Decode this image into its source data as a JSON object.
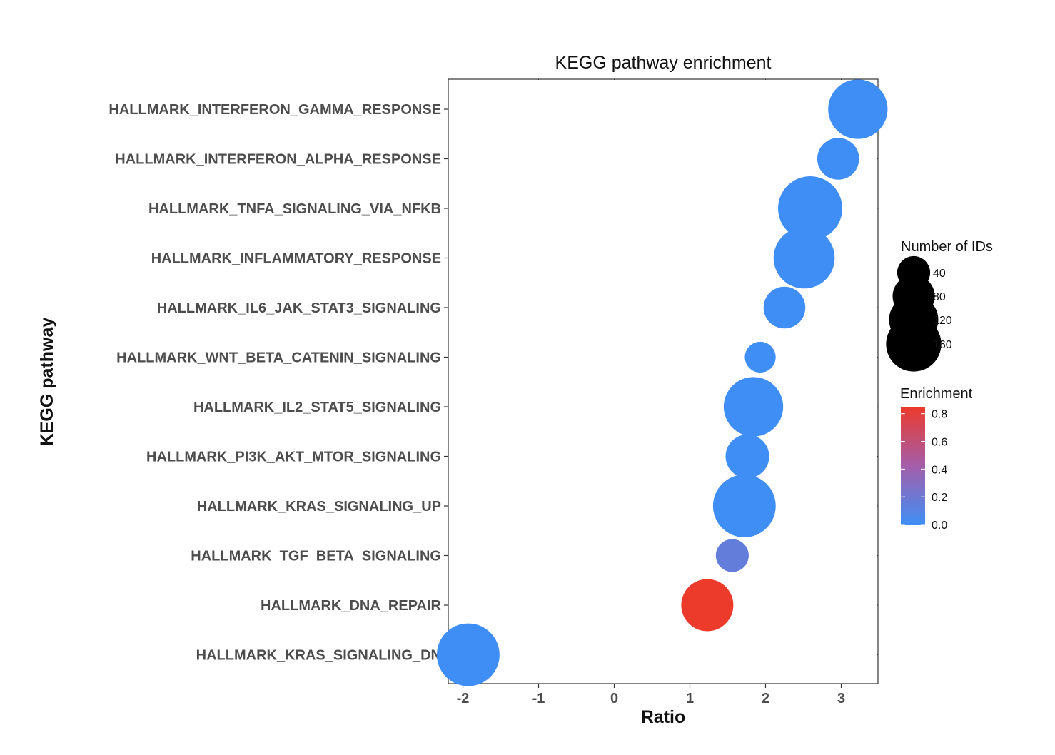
{
  "chart_data": {
    "type": "scatter",
    "title": "KEGG pathway enrichment",
    "xlabel": "Ratio",
    "ylabel": "KEGG pathway",
    "xlim": [
      -2.2,
      3.5
    ],
    "xticks": [
      -2,
      -1,
      0,
      1,
      2,
      3
    ],
    "grid": false,
    "legend_position": "right",
    "categories": [
      "HALLMARK_INTERFERON_GAMMA_RESPONSE",
      "HALLMARK_INTERFERON_ALPHA_RESPONSE",
      "HALLMARK_TNFA_SIGNALING_VIA_NFKB",
      "HALLMARK_INFLAMMATORY_RESPONSE",
      "HALLMARK_IL6_JAK_STAT3_SIGNALING",
      "HALLMARK_WNT_BETA_CATENIN_SIGNALING",
      "HALLMARK_IL2_STAT5_SIGNALING",
      "HALLMARK_PI3K_AKT_MTOR_SIGNALING",
      "HALLMARK_KRAS_SIGNALING_UP",
      "HALLMARK_TGF_BETA_SIGNALING",
      "HALLMARK_DNA_REPAIR",
      "HALLMARK_KRAS_SIGNALING_DN"
    ],
    "points": [
      {
        "pathway": "HALLMARK_INTERFERON_GAMMA_RESPONSE",
        "ratio": 3.22,
        "ids": 140,
        "enrichment": 0.0
      },
      {
        "pathway": "HALLMARK_INTERFERON_ALPHA_RESPONSE",
        "ratio": 2.96,
        "ids": 55,
        "enrichment": 0.0
      },
      {
        "pathway": "HALLMARK_TNFA_SIGNALING_VIA_NFKB",
        "ratio": 2.59,
        "ids": 170,
        "enrichment": 0.0
      },
      {
        "pathway": "HALLMARK_INFLAMMATORY_RESPONSE",
        "ratio": 2.51,
        "ids": 150,
        "enrichment": 0.0
      },
      {
        "pathway": "HALLMARK_IL6_JAK_STAT3_SIGNALING",
        "ratio": 2.25,
        "ids": 55,
        "enrichment": 0.0
      },
      {
        "pathway": "HALLMARK_WNT_BETA_CATENIN_SIGNALING",
        "ratio": 1.93,
        "ids": 22,
        "enrichment": 0.0
      },
      {
        "pathway": "HALLMARK_IL2_STAT5_SIGNALING",
        "ratio": 1.84,
        "ids": 140,
        "enrichment": 0.0
      },
      {
        "pathway": "HALLMARK_PI3K_AKT_MTOR_SIGNALING",
        "ratio": 1.76,
        "ids": 62,
        "enrichment": 0.0
      },
      {
        "pathway": "HALLMARK_KRAS_SIGNALING_UP",
        "ratio": 1.72,
        "ids": 160,
        "enrichment": 0.0
      },
      {
        "pathway": "HALLMARK_TGF_BETA_SIGNALING",
        "ratio": 1.56,
        "ids": 27,
        "enrichment": 0.15
      },
      {
        "pathway": "HALLMARK_DNA_REPAIR",
        "ratio": 1.23,
        "ids": 100,
        "enrichment": 0.85
      },
      {
        "pathway": "HALLMARK_KRAS_SIGNALING_DN",
        "ratio": -1.93,
        "ids": 160,
        "enrichment": 0.0
      }
    ],
    "size_legend": {
      "title": "Number of IDs",
      "values": [
        40,
        80,
        120,
        160
      ],
      "labels": [
        "40",
        "80",
        "120",
        "160"
      ]
    },
    "color_legend": {
      "title": "Enrichment",
      "range": [
        0.0,
        0.85
      ],
      "ticks": [
        0.0,
        0.2,
        0.4,
        0.6,
        0.8
      ],
      "labels": [
        "0.0",
        "0.2",
        "0.4",
        "0.6",
        "0.8"
      ],
      "low_color": "#3f8ef5",
      "high_color": "#ec3a2b"
    }
  }
}
